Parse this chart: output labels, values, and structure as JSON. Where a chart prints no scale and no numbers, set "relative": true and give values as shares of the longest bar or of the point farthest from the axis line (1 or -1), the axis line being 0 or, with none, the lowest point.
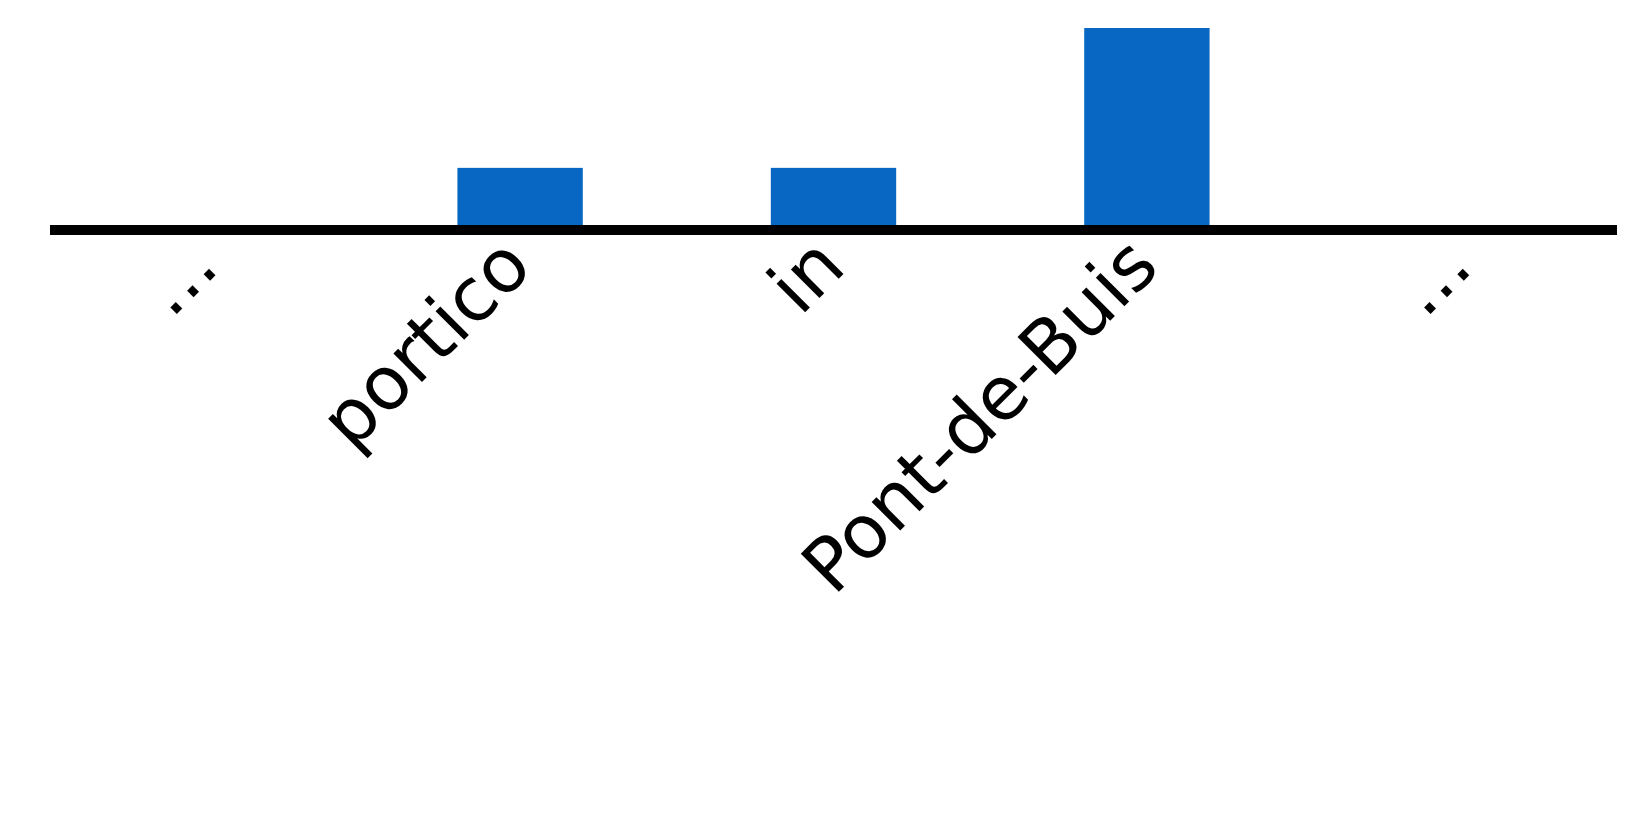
{
  "chart_data": {
    "type": "bar",
    "relative": true,
    "categories": [
      "...",
      "portico",
      "in",
      "Pont-de-Buis",
      "..."
    ],
    "values": [
      null,
      0.29,
      0.29,
      1,
      null
    ],
    "color": "#0767c2"
  }
}
